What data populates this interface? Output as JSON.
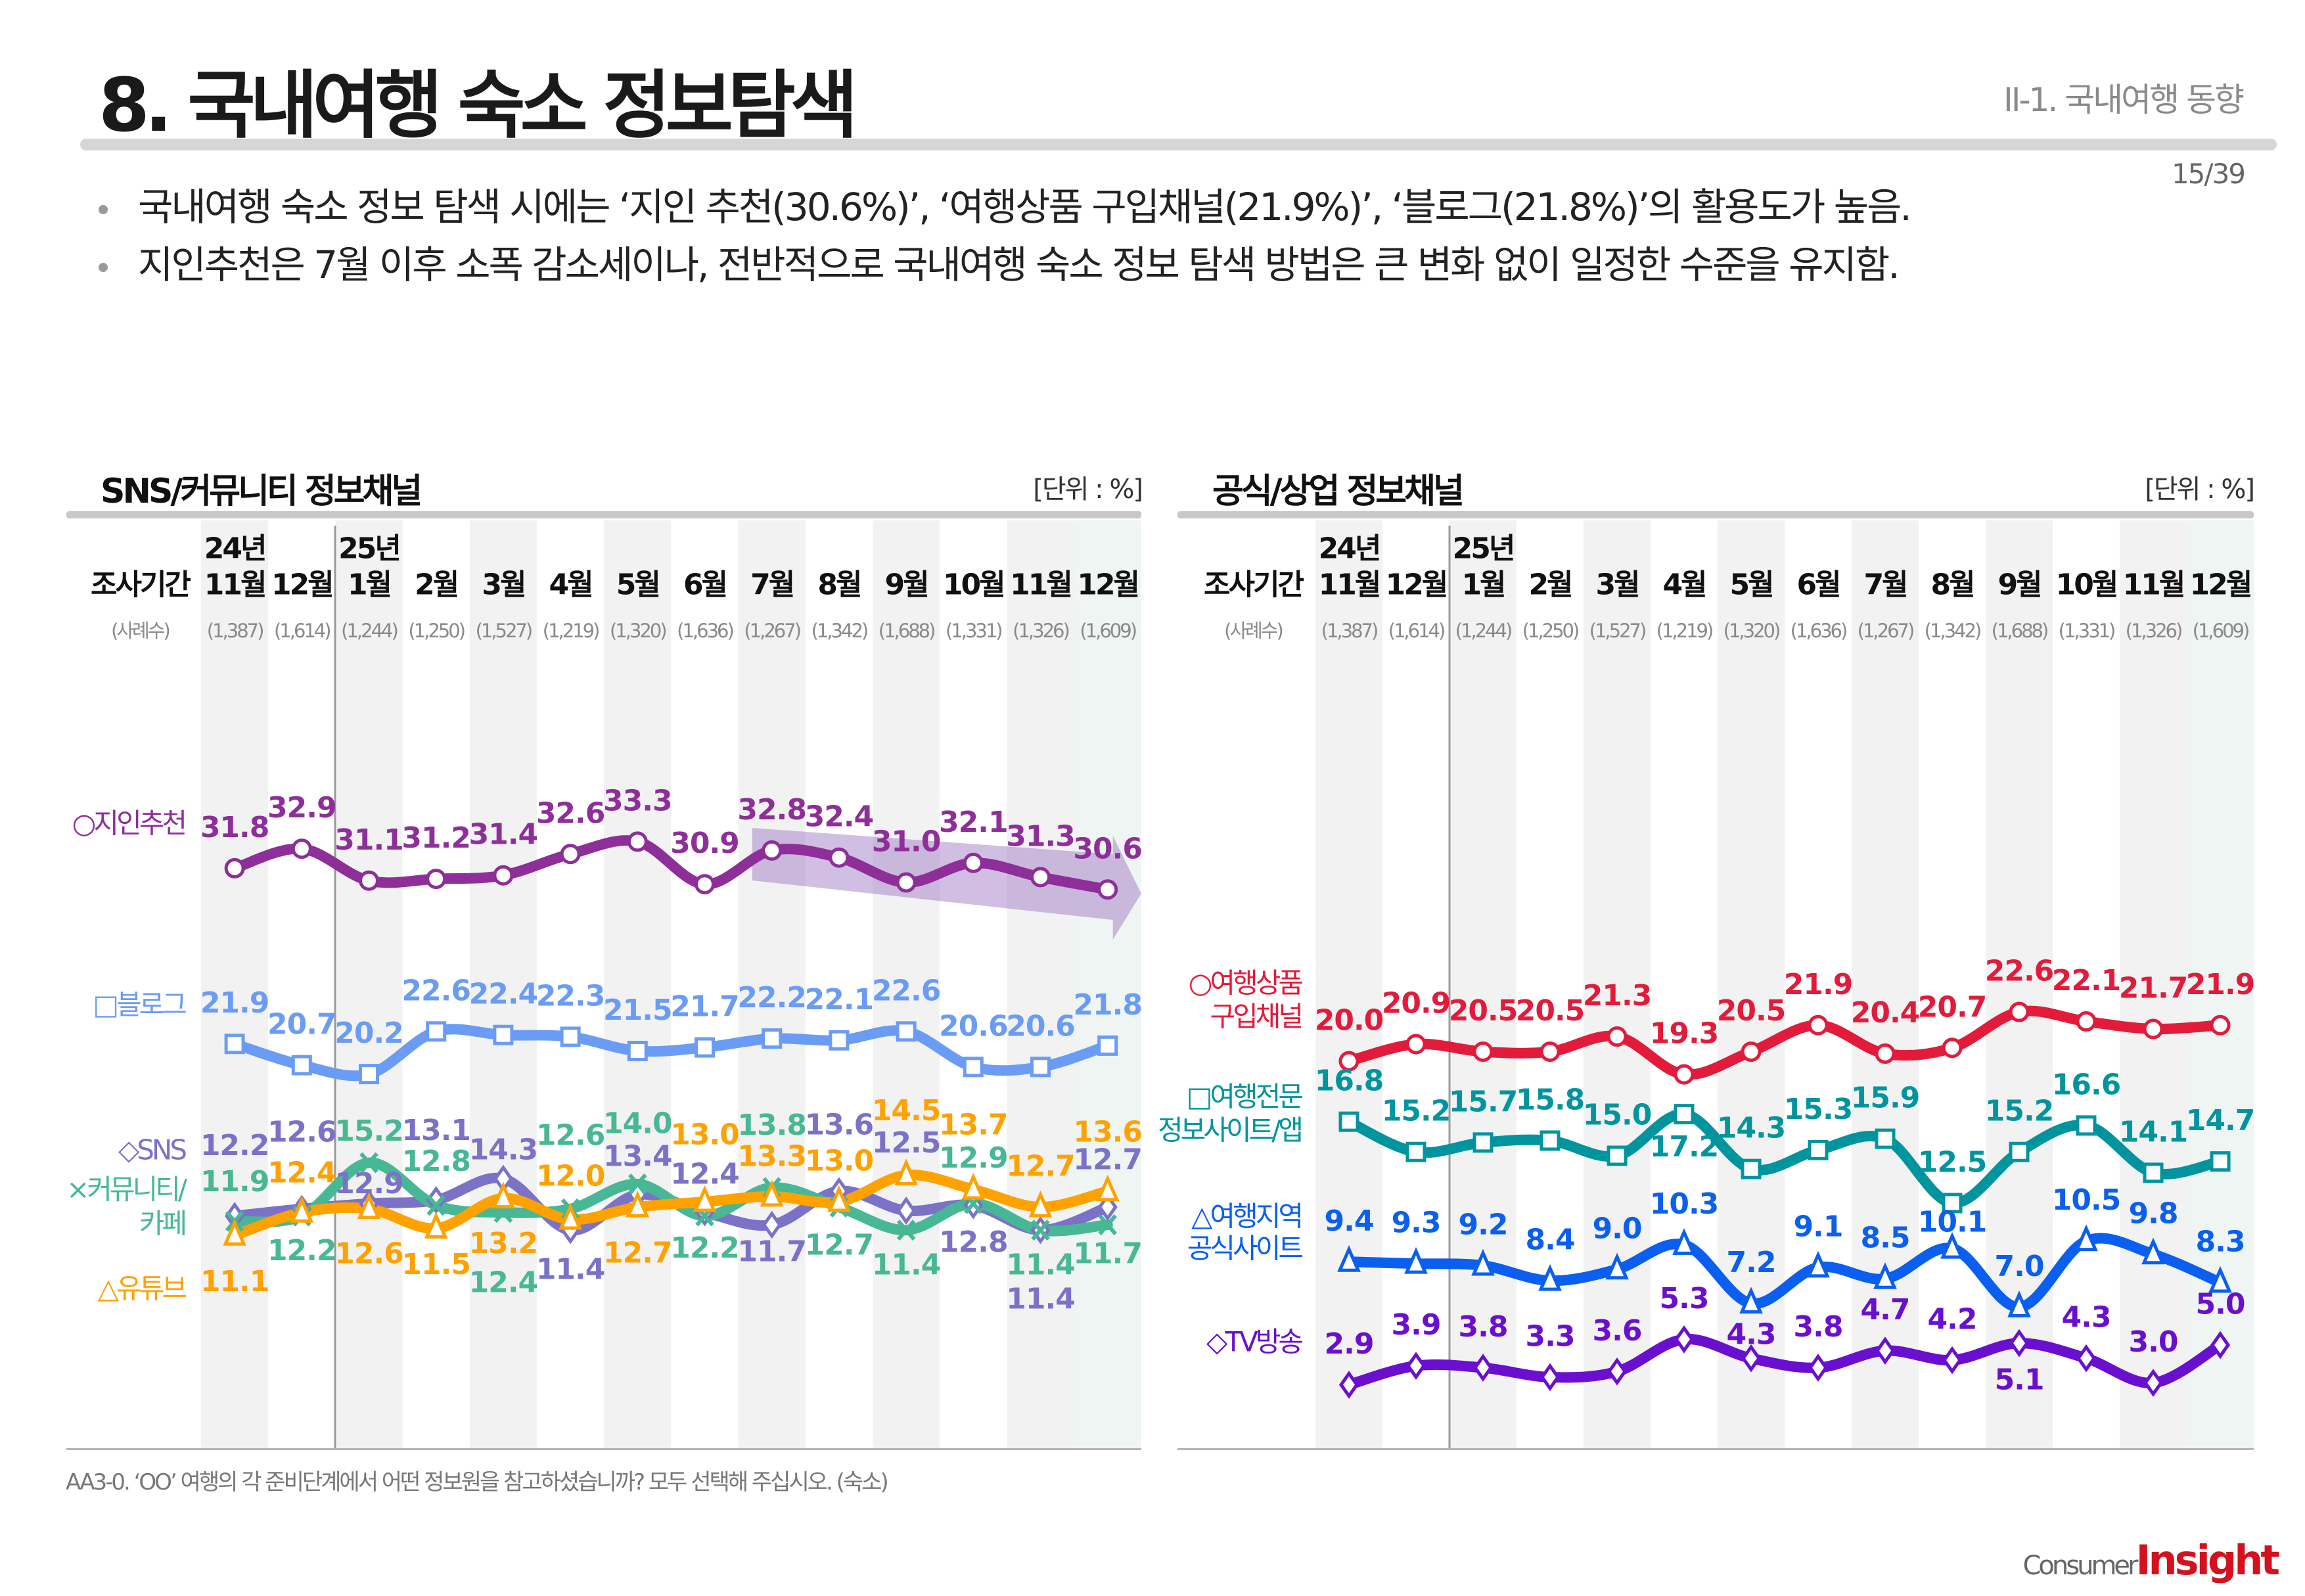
{
  "header": {
    "title": "8. 국내여행 숙소 정보탐색",
    "section": "II-1. 국내여행 동향",
    "page": "15/39"
  },
  "bullets": [
    "국내여행 숙소 정보 탐색 시에는 ‘지인 추천(30.6%)’, ‘여행상품 구입채널(21.9%)’, ‘블로그(21.8%)’의 활용도가 높음.",
    "지인추천은 7월 이후 소폭 감소세이나, 전반적으로 국내여행 숙소 정보 탐색 방법은 큰 변화 없이 일정한 수준을 유지함."
  ],
  "footnote": "AA3-0. ‘OO’ 여행의 각 준비단계에서 어떤 정보원을 참고하셨습니까? 모두 선택해 주십시오. (숙소)",
  "logo": {
    "part1": "Consumer",
    "part2": "Insight"
  },
  "chart_data": [
    {
      "type": "line",
      "title": "SNS/커뮤니티 정보채널",
      "unit": "[단위 : %]",
      "period_label": "조사기간",
      "sample_label": "(사례수)",
      "years": [
        {
          "index": 0,
          "label": "24년"
        },
        {
          "index": 2,
          "label": "25년"
        }
      ],
      "categories": [
        "11월",
        "12월",
        "1월",
        "2월",
        "3월",
        "4월",
        "5월",
        "6월",
        "7월",
        "8월",
        "9월",
        "10월",
        "11월",
        "12월"
      ],
      "samples": [
        "(1,387)",
        "(1,614)",
        "(1,244)",
        "(1,250)",
        "(1,527)",
        "(1,219)",
        "(1,320)",
        "(1,636)",
        "(1,267)",
        "(1,342)",
        "(1,688)",
        "(1,331)",
        "(1,326)",
        "(1,609)"
      ],
      "trend_arrow": {
        "from": "7월",
        "to": "12월",
        "series": "지인추천",
        "direction": "down"
      },
      "series": [
        {
          "name": "지인추천",
          "legend": [
            "○지인추천"
          ],
          "color": "#8e2f99",
          "marker": "circle",
          "values": [
            31.8,
            32.9,
            31.1,
            31.2,
            31.4,
            32.6,
            33.3,
            30.9,
            32.8,
            32.4,
            31.0,
            32.1,
            31.3,
            30.6
          ]
        },
        {
          "name": "블로그",
          "legend": [
            "□블로그"
          ],
          "color": "#6b9cf5",
          "marker": "square",
          "values": [
            21.9,
            20.7,
            20.2,
            22.6,
            22.4,
            22.3,
            21.5,
            21.7,
            22.2,
            22.1,
            22.6,
            20.6,
            20.6,
            21.8
          ]
        },
        {
          "name": "SNS",
          "legend": [
            "◇SNS"
          ],
          "color": "#7b72c8",
          "marker": "diamond",
          "values": [
            12.2,
            12.6,
            12.9,
            13.1,
            14.3,
            11.4,
            13.4,
            12.4,
            11.7,
            13.6,
            12.5,
            12.8,
            11.4,
            12.7
          ]
        },
        {
          "name": "커뮤니티/카페",
          "legend": [
            "×커뮤니티/",
            "카페"
          ],
          "color": "#48b795",
          "marker": "x",
          "values": [
            11.9,
            12.2,
            15.2,
            12.8,
            12.4,
            12.6,
            14.0,
            12.2,
            13.8,
            12.7,
            11.4,
            12.9,
            11.4,
            11.7
          ]
        },
        {
          "name": "유튜브",
          "legend": [
            "△유튜브"
          ],
          "color": "#ffa200",
          "marker": "triangle",
          "values": [
            11.1,
            12.4,
            12.6,
            11.5,
            13.2,
            12.0,
            12.7,
            13.0,
            13.3,
            13.0,
            14.5,
            13.7,
            12.7,
            13.6
          ]
        }
      ]
    },
    {
      "type": "line",
      "title": "공식/상업 정보채널",
      "unit": "[단위 : %]",
      "period_label": "조사기간",
      "sample_label": "(사례수)",
      "years": [
        {
          "index": 0,
          "label": "24년"
        },
        {
          "index": 2,
          "label": "25년"
        }
      ],
      "categories": [
        "11월",
        "12월",
        "1월",
        "2월",
        "3월",
        "4월",
        "5월",
        "6월",
        "7월",
        "8월",
        "9월",
        "10월",
        "11월",
        "12월"
      ],
      "samples": [
        "(1,387)",
        "(1,614)",
        "(1,244)",
        "(1,250)",
        "(1,527)",
        "(1,219)",
        "(1,320)",
        "(1,636)",
        "(1,267)",
        "(1,342)",
        "(1,688)",
        "(1,331)",
        "(1,326)",
        "(1,609)"
      ],
      "series": [
        {
          "name": "여행상품 구입채널",
          "legend": [
            "○여행상품",
            "구입채널"
          ],
          "color": "#e31b3b",
          "marker": "circle",
          "values": [
            20.0,
            20.9,
            20.5,
            20.5,
            21.3,
            19.3,
            20.5,
            21.9,
            20.4,
            20.7,
            22.6,
            22.1,
            21.7,
            21.9
          ]
        },
        {
          "name": "여행전문 정보사이트/앱",
          "legend": [
            "□여행전문",
            "정보사이트/앱"
          ],
          "color": "#00959e",
          "marker": "square",
          "values": [
            16.8,
            15.2,
            15.7,
            15.8,
            15.0,
            17.2,
            14.3,
            15.3,
            15.9,
            12.5,
            15.2,
            16.6,
            14.1,
            14.7
          ]
        },
        {
          "name": "여행지역 공식사이트",
          "legend": [
            "△여행지역",
            "공식사이트"
          ],
          "color": "#0a5ff0",
          "marker": "triangle",
          "values": [
            9.4,
            9.3,
            9.2,
            8.4,
            9.0,
            10.3,
            7.2,
            9.1,
            8.5,
            10.1,
            7.0,
            10.5,
            9.8,
            8.3
          ]
        },
        {
          "name": "TV방송",
          "legend": [
            "◇TV방송"
          ],
          "color": "#6a0fcf",
          "marker": "diamond",
          "values": [
            2.9,
            3.9,
            3.8,
            3.3,
            3.6,
            5.3,
            4.3,
            3.8,
            4.7,
            4.2,
            5.1,
            4.3,
            3.0,
            5.0
          ]
        }
      ]
    }
  ]
}
